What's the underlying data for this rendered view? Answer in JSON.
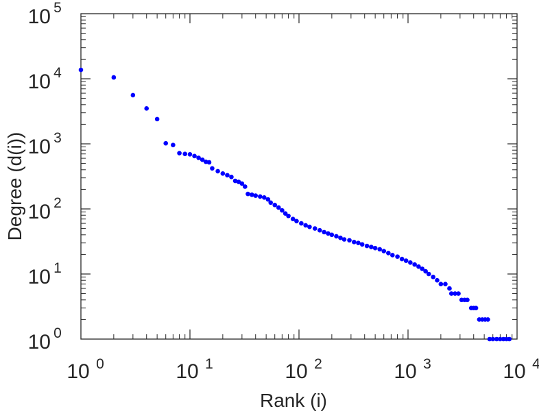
{
  "chart_data": {
    "type": "scatter",
    "xlabel": "Rank (i)",
    "ylabel": "Degree (d(i))",
    "xscale": "log",
    "yscale": "log",
    "xlim": [
      1,
      10000
    ],
    "ylim": [
      1,
      100000
    ],
    "grid": false,
    "legend": "none",
    "x_ticks": [
      {
        "base": "10",
        "exp": "0"
      },
      {
        "base": "10",
        "exp": "1"
      },
      {
        "base": "10",
        "exp": "2"
      },
      {
        "base": "10",
        "exp": "3"
      },
      {
        "base": "10",
        "exp": "4"
      }
    ],
    "y_ticks": [
      {
        "base": "10",
        "exp": "0"
      },
      {
        "base": "10",
        "exp": "1"
      },
      {
        "base": "10",
        "exp": "2"
      },
      {
        "base": "10",
        "exp": "3"
      },
      {
        "base": "10",
        "exp": "4"
      },
      {
        "base": "10",
        "exp": "5"
      }
    ],
    "series_color": "#0000ff",
    "axis_color": "#262626",
    "points": [
      [
        1,
        13700
      ],
      [
        2,
        10500
      ],
      [
        3,
        5600
      ],
      [
        4,
        3500
      ],
      [
        5,
        2400
      ],
      [
        6,
        1020
      ],
      [
        7,
        960
      ],
      [
        8,
        720
      ],
      [
        9,
        700
      ],
      [
        10,
        690
      ],
      [
        11,
        650
      ],
      [
        12,
        610
      ],
      [
        13,
        570
      ],
      [
        14,
        530
      ],
      [
        15,
        520
      ],
      [
        16,
        420
      ],
      [
        18,
        380
      ],
      [
        20,
        350
      ],
      [
        22,
        330
      ],
      [
        24,
        310
      ],
      [
        26,
        270
      ],
      [
        28,
        260
      ],
      [
        30,
        245
      ],
      [
        32,
        220
      ],
      [
        34,
        170
      ],
      [
        37,
        165
      ],
      [
        40,
        160
      ],
      [
        44,
        155
      ],
      [
        48,
        150
      ],
      [
        52,
        140
      ],
      [
        55,
        125
      ],
      [
        60,
        115
      ],
      [
        65,
        105
      ],
      [
        70,
        95
      ],
      [
        75,
        85
      ],
      [
        80,
        78
      ],
      [
        88,
        70
      ],
      [
        95,
        65
      ],
      [
        105,
        60
      ],
      [
        115,
        56
      ],
      [
        125,
        53
      ],
      [
        140,
        50
      ],
      [
        155,
        47
      ],
      [
        170,
        44
      ],
      [
        185,
        42
      ],
      [
        200,
        40
      ],
      [
        220,
        38
      ],
      [
        240,
        36
      ],
      [
        260,
        34
      ],
      [
        290,
        33
      ],
      [
        320,
        31
      ],
      [
        350,
        30
      ],
      [
        380,
        28.5
      ],
      [
        420,
        27
      ],
      [
        460,
        26
      ],
      [
        500,
        25
      ],
      [
        550,
        24
      ],
      [
        600,
        22.5
      ],
      [
        660,
        21
      ],
      [
        720,
        19.5
      ],
      [
        800,
        18.5
      ],
      [
        880,
        17
      ],
      [
        960,
        16
      ],
      [
        1050,
        15
      ],
      [
        1150,
        14
      ],
      [
        1250,
        13
      ],
      [
        1350,
        12
      ],
      [
        1450,
        11
      ],
      [
        1550,
        10
      ],
      [
        1700,
        9
      ],
      [
        1850,
        8
      ],
      [
        2000,
        7
      ],
      [
        2200,
        7
      ],
      [
        2400,
        6
      ],
      [
        2500,
        5
      ],
      [
        2700,
        5
      ],
      [
        2900,
        5
      ],
      [
        3100,
        4
      ],
      [
        3300,
        4
      ],
      [
        3500,
        4
      ],
      [
        3800,
        3
      ],
      [
        4000,
        3
      ],
      [
        4200,
        3
      ],
      [
        4500,
        2
      ],
      [
        4800,
        2
      ],
      [
        5100,
        2
      ],
      [
        5400,
        2
      ],
      [
        5600,
        1
      ],
      [
        6000,
        1
      ],
      [
        6500,
        1
      ],
      [
        7000,
        1
      ],
      [
        7500,
        1
      ],
      [
        8000,
        1
      ],
      [
        8500,
        1
      ]
    ]
  }
}
